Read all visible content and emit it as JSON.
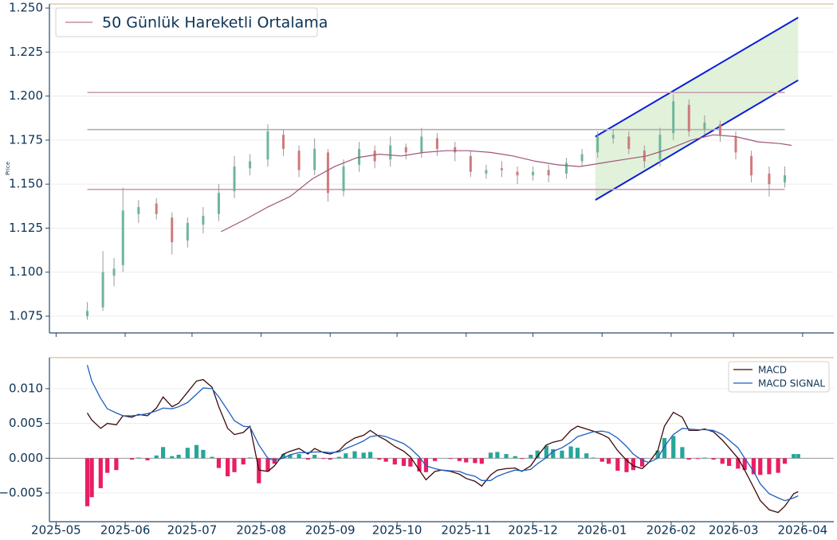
{
  "chart_data": [
    {
      "type": "candlestick",
      "ylabel": "Price",
      "x": [
        14,
        21,
        26,
        30,
        37,
        45,
        52,
        59,
        66,
        73,
        80,
        87,
        95,
        102,
        109,
        116,
        122,
        129,
        136,
        143,
        150,
        157,
        164,
        171,
        179,
        186,
        193,
        200,
        207,
        214,
        221,
        229,
        236,
        243,
        250,
        257,
        264,
        271,
        277,
        284,
        291,
        298,
        305,
        312,
        320,
        327
      ],
      "open": [
        1.075,
        1.08,
        1.098,
        1.104,
        1.133,
        1.139,
        1.131,
        1.118,
        1.127,
        1.133,
        1.146,
        1.159,
        1.164,
        1.178,
        1.169,
        1.158,
        1.168,
        1.146,
        1.161,
        1.169,
        1.164,
        1.171,
        1.168,
        1.176,
        1.171,
        1.166,
        1.156,
        1.159,
        1.157,
        1.155,
        1.158,
        1.156,
        1.163,
        1.168,
        1.176,
        1.177,
        1.169,
        1.164,
        1.179,
        1.195,
        1.181,
        1.184,
        1.177,
        1.166,
        1.156,
        1.151
      ],
      "high": [
        1.083,
        1.112,
        1.108,
        1.148,
        1.141,
        1.142,
        1.134,
        1.131,
        1.137,
        1.15,
        1.166,
        1.167,
        1.184,
        1.181,
        1.172,
        1.176,
        1.17,
        1.164,
        1.174,
        1.172,
        1.177,
        1.173,
        1.182,
        1.179,
        1.174,
        1.169,
        1.161,
        1.163,
        1.16,
        1.16,
        1.161,
        1.165,
        1.17,
        1.18,
        1.181,
        1.18,
        1.172,
        1.182,
        1.201,
        1.198,
        1.189,
        1.186,
        1.18,
        1.169,
        1.16,
        1.16
      ],
      "low": [
        1.073,
        1.078,
        1.092,
        1.1,
        1.128,
        1.13,
        1.11,
        1.114,
        1.122,
        1.129,
        1.142,
        1.155,
        1.16,
        1.166,
        1.154,
        1.155,
        1.14,
        1.143,
        1.157,
        1.159,
        1.16,
        1.164,
        1.165,
        1.166,
        1.163,
        1.154,
        1.153,
        1.154,
        1.15,
        1.152,
        1.151,
        1.153,
        1.16,
        1.165,
        1.173,
        1.167,
        1.159,
        1.16,
        1.175,
        1.177,
        1.178,
        1.174,
        1.164,
        1.151,
        1.143,
        1.148
      ],
      "close": [
        1.078,
        1.1,
        1.102,
        1.135,
        1.137,
        1.133,
        1.117,
        1.128,
        1.132,
        1.145,
        1.16,
        1.163,
        1.18,
        1.17,
        1.158,
        1.17,
        1.145,
        1.16,
        1.17,
        1.163,
        1.172,
        1.168,
        1.177,
        1.17,
        1.168,
        1.157,
        1.158,
        1.158,
        1.155,
        1.157,
        1.155,
        1.162,
        1.167,
        1.177,
        1.178,
        1.17,
        1.163,
        1.178,
        1.197,
        1.18,
        1.185,
        1.178,
        1.168,
        1.155,
        1.15,
        1.155
      ],
      "up_color": "#6fb59a",
      "down_color": "#d07a7a",
      "wick_color": "#9a9a9a",
      "series": [
        {
          "name": "50 Günlük Hareketli Ortalama",
          "color": "#a0557a",
          "x": [
            74,
            85,
            95,
            105,
            115,
            125,
            135,
            145,
            155,
            165,
            175,
            185,
            195,
            205,
            215,
            225,
            235,
            245,
            255,
            265,
            275,
            285,
            295,
            305,
            315,
            325,
            330
          ],
          "values": [
            1.123,
            1.13,
            1.137,
            1.143,
            1.153,
            1.16,
            1.165,
            1.167,
            1.166,
            1.168,
            1.169,
            1.169,
            1.168,
            1.166,
            1.163,
            1.161,
            1.16,
            1.162,
            1.164,
            1.166,
            1.17,
            1.175,
            1.178,
            1.177,
            1.174,
            1.173,
            1.172
          ]
        }
      ],
      "levels": [
        1.202,
        1.181,
        1.147
      ],
      "level_colors": [
        "#c9a0b4",
        "#b0b0b0",
        "#c9a0b4"
      ],
      "channel": {
        "x": [
          242,
          333
        ],
        "lower": [
          1.141,
          1.209
        ],
        "upper": [
          1.177,
          1.2446
        ],
        "color": "#0a1ed8",
        "fill": "#dcefd4"
      },
      "xlim": [
        -3,
        349
      ],
      "ylim": [
        1.0655,
        1.2523
      ],
      "yticks": [
        1.075,
        {
          "value": 1.1,
          "label": "1.100"
        },
        1.125,
        {
          "value": 1.15,
          "label": "1.150"
        },
        1.175,
        {
          "value": 1.2,
          "label": "1.200"
        },
        1.225,
        {
          "value": 1.25,
          "label": "1.250"
        }
      ],
      "grid": true,
      "legend": "upper left"
    },
    {
      "type": "macd",
      "x": [
        14,
        16,
        20,
        23,
        27,
        30,
        34,
        37,
        41,
        45,
        48,
        52,
        55,
        59,
        63,
        66,
        70,
        73,
        77,
        80,
        84,
        87,
        91,
        95,
        98,
        102,
        105,
        109,
        113,
        116,
        120,
        123,
        127,
        130,
        134,
        138,
        141,
        145,
        148,
        152,
        156,
        159,
        163,
        166,
        170,
        173,
        177,
        181,
        184,
        188,
        191,
        195,
        198,
        202,
        206,
        209,
        213,
        216,
        220,
        223,
        227,
        231,
        234,
        238,
        241,
        245,
        248,
        252,
        256,
        259,
        263,
        266,
        270,
        273,
        277,
        281,
        284,
        288,
        291,
        295,
        299,
        302,
        306,
        309,
        313,
        316,
        320,
        324,
        327,
        331,
        333
      ],
      "series": [
        {
          "name": "MACD",
          "color": "#3b0a0a",
          "values": [
            0.0065,
            0.0055,
            0.0043,
            0.005,
            0.0048,
            0.0061,
            0.0059,
            0.0063,
            0.0061,
            0.0072,
            0.0088,
            0.0074,
            0.0079,
            0.0095,
            0.0111,
            0.0113,
            0.0102,
            0.0074,
            0.0043,
            0.0034,
            0.0037,
            0.0046,
            -0.0017,
            -0.0019,
            -0.0011,
            0.0006,
            0.001,
            0.0014,
            0.0006,
            0.0014,
            0.0008,
            0.0006,
            0.0011,
            0.0021,
            0.0029,
            0.0033,
            0.004,
            0.0031,
            0.0026,
            0.0017,
            0.001,
            0.0002,
            -0.0017,
            -0.0031,
            -0.0019,
            -0.0017,
            -0.0019,
            -0.0023,
            -0.0029,
            -0.0033,
            -0.004,
            -0.0024,
            -0.0017,
            -0.0015,
            -0.0014,
            -0.0019,
            -0.0011,
            0.0003,
            0.0019,
            0.0023,
            0.0026,
            0.004,
            0.0046,
            0.0042,
            0.0039,
            0.0034,
            0.0029,
            0.0011,
            -0.0003,
            -0.0011,
            -0.0015,
            -0.0006,
            0.0011,
            0.0046,
            0.0066,
            0.0059,
            0.004,
            0.004,
            0.0042,
            0.0038,
            0.0026,
            0.0015,
            0.0,
            -0.0017,
            -0.0042,
            -0.0061,
            -0.0074,
            -0.0078,
            -0.0069,
            -0.0051,
            -0.0048
          ]
        },
        {
          "name": "MACD SIGNAL",
          "color": "#1f5fbf",
          "values": [
            0.0134,
            0.0111,
            0.0086,
            0.0071,
            0.0065,
            0.0061,
            0.0061,
            0.0062,
            0.0064,
            0.0068,
            0.0072,
            0.0071,
            0.0074,
            0.008,
            0.0092,
            0.0101,
            0.01,
            0.0088,
            0.0069,
            0.0054,
            0.0046,
            0.0045,
            0.0019,
            0.0,
            -0.0003,
            0.0,
            0.0005,
            0.0008,
            0.0008,
            0.0009,
            0.0009,
            0.0008,
            0.0009,
            0.0014,
            0.0019,
            0.0025,
            0.0031,
            0.0033,
            0.0031,
            0.0026,
            0.0021,
            0.0014,
            0.0002,
            -0.0011,
            -0.0015,
            -0.0017,
            -0.0018,
            -0.0019,
            -0.0023,
            -0.0026,
            -0.0032,
            -0.0032,
            -0.0026,
            -0.0021,
            -0.0017,
            -0.0018,
            -0.0016,
            -0.0008,
            0.0001,
            0.001,
            0.0015,
            0.0023,
            0.0031,
            0.0035,
            0.0038,
            0.0039,
            0.0037,
            0.0029,
            0.0017,
            0.0006,
            -0.0003,
            -0.0006,
            0.0,
            0.0017,
            0.0034,
            0.0043,
            0.0042,
            0.0041,
            0.0041,
            0.004,
            0.0034,
            0.0026,
            0.0015,
            0.0,
            -0.0019,
            -0.0037,
            -0.0051,
            -0.0057,
            -0.0061,
            -0.0057,
            -0.0054
          ]
        }
      ],
      "histogram": {
        "values": [
          -0.0069,
          -0.0056,
          -0.0043,
          -0.0021,
          -0.0017,
          0.0,
          -0.0002,
          0.0001,
          -0.0003,
          0.0004,
          0.0016,
          0.0003,
          0.0005,
          0.0015,
          0.0019,
          0.0012,
          0.0002,
          -0.0014,
          -0.0026,
          -0.002,
          -0.0009,
          0.0001,
          -0.0036,
          -0.0019,
          -0.0008,
          0.0006,
          0.0005,
          0.0006,
          -0.0002,
          0.0005,
          -0.0001,
          -0.0002,
          0.0002,
          0.0007,
          0.001,
          0.0008,
          0.0009,
          -0.0002,
          -0.0005,
          -0.0009,
          -0.0011,
          -0.0012,
          -0.0019,
          -0.002,
          -0.0004,
          0.0,
          -0.0001,
          -0.0004,
          -0.0006,
          -0.0007,
          -0.0008,
          0.0008,
          0.0009,
          0.0006,
          0.0003,
          -0.0001,
          0.0005,
          0.0011,
          0.0018,
          0.0013,
          0.0011,
          0.0017,
          0.0015,
          0.0007,
          0.0001,
          -0.0005,
          -0.0008,
          -0.0018,
          -0.002,
          -0.0017,
          -0.0012,
          0.0,
          0.0011,
          0.0029,
          0.0032,
          0.0016,
          -0.0002,
          -0.0001,
          0.0001,
          -0.0002,
          -0.0008,
          -0.0011,
          -0.0015,
          -0.0017,
          -0.0023,
          -0.0024,
          -0.0023,
          -0.0021,
          -0.0008,
          0.0006,
          0.0006
        ],
        "pos_color": "#26a69a",
        "neg_color": "#e91e63"
      },
      "xlim": [
        -3,
        349
      ],
      "ylim": [
        -0.00912,
        0.01446
      ],
      "yticks": [
        {
          "value": -0.005,
          "label": "−0.005"
        },
        {
          "value": 0,
          "label": "0.000"
        },
        {
          "value": 0.005,
          "label": "0.005"
        },
        {
          "value": 0.01,
          "label": "0.010"
        }
      ],
      "xticks": [
        {
          "value": 0,
          "label": "2025-05"
        },
        {
          "value": 31,
          "label": "2025-06"
        },
        {
          "value": 61,
          "label": "2025-07"
        },
        {
          "value": 92,
          "label": "2025-08"
        },
        {
          "value": 123,
          "label": "2025-09"
        },
        {
          "value": 153,
          "label": "2025-10"
        },
        {
          "value": 184,
          "label": "2025-11"
        },
        {
          "value": 214,
          "label": "2025-12"
        },
        {
          "value": 245,
          "label": "2026-01"
        },
        {
          "value": 276,
          "label": "2026-02"
        },
        {
          "value": 304,
          "label": "2026-03"
        },
        {
          "value": 335,
          "label": "2026-04"
        }
      ],
      "grid": true,
      "legend": "upper right"
    }
  ]
}
